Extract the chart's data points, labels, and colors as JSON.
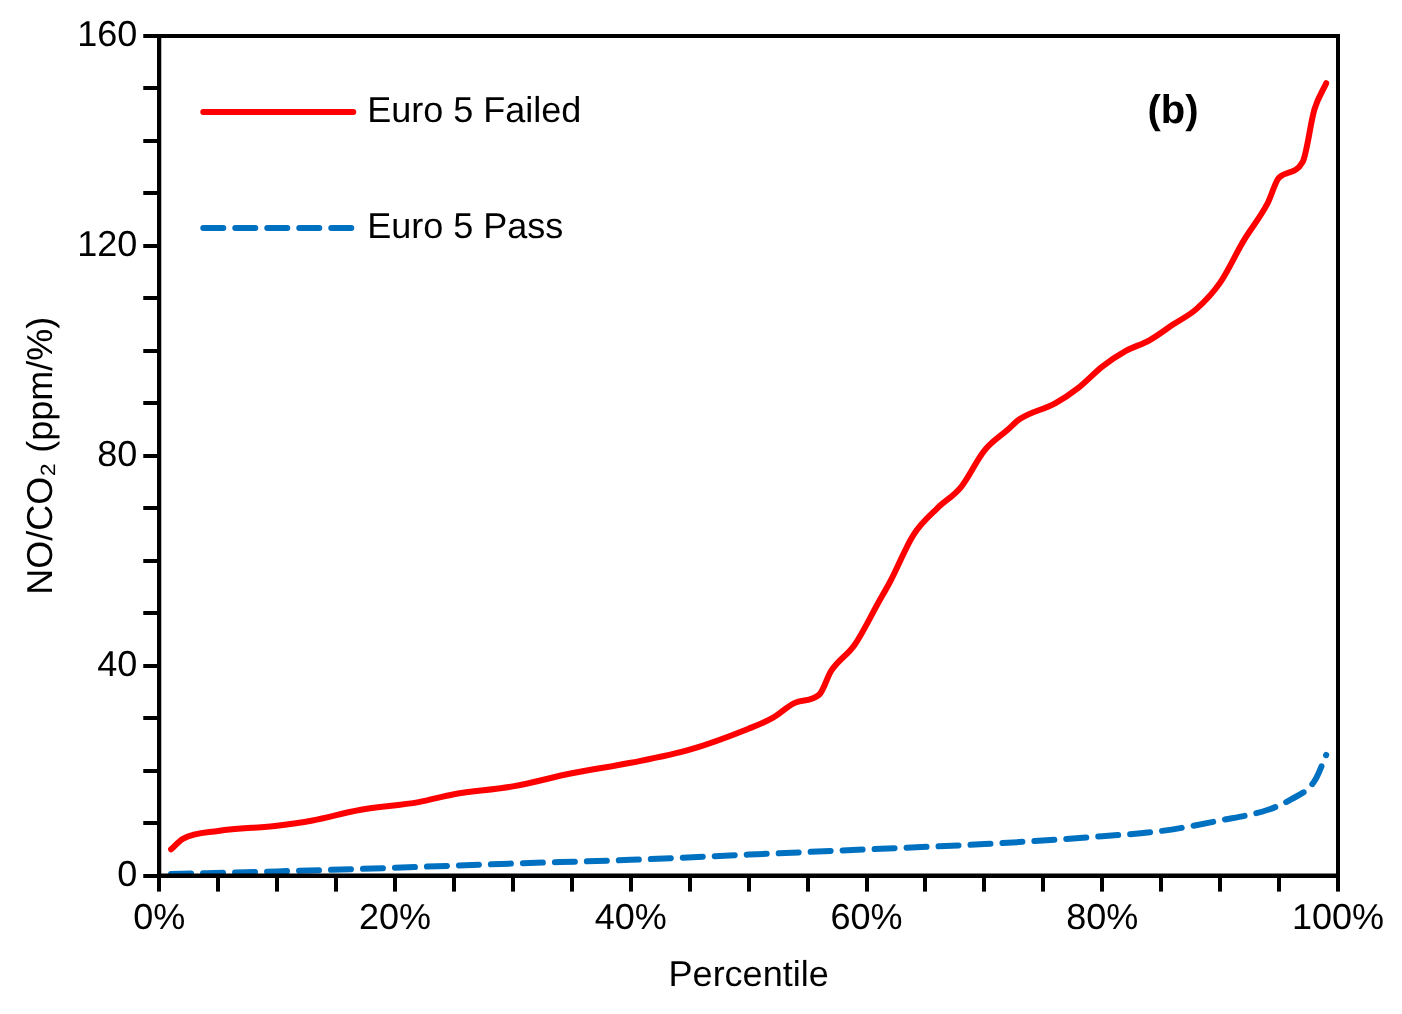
{
  "chart_data": {
    "type": "line",
    "xlabel": "Percentile",
    "ylabel": "NO/CO₂ (ppm/%)",
    "annotations": [
      "(b)"
    ],
    "xlim": [
      0,
      100
    ],
    "ylim": [
      0,
      160
    ],
    "xticks": [
      {
        "value": 0,
        "label": "0%"
      },
      {
        "value": 5,
        "label": null
      },
      {
        "value": 10,
        "label": null
      },
      {
        "value": 15,
        "label": null
      },
      {
        "value": 20,
        "label": "20%"
      },
      {
        "value": 25,
        "label": null
      },
      {
        "value": 30,
        "label": null
      },
      {
        "value": 35,
        "label": null
      },
      {
        "value": 40,
        "label": "40%"
      },
      {
        "value": 45,
        "label": null
      },
      {
        "value": 50,
        "label": null
      },
      {
        "value": 55,
        "label": null
      },
      {
        "value": 60,
        "label": "60%"
      },
      {
        "value": 65,
        "label": null
      },
      {
        "value": 70,
        "label": null
      },
      {
        "value": 75,
        "label": null
      },
      {
        "value": 80,
        "label": "80%"
      },
      {
        "value": 85,
        "label": null
      },
      {
        "value": 90,
        "label": null
      },
      {
        "value": 95,
        "label": null
      },
      {
        "value": 100,
        "label": "100%"
      }
    ],
    "yticks": [
      0,
      {
        "value": 10,
        "label": null
      },
      {
        "value": 20,
        "label": null
      },
      {
        "value": 30,
        "label": null
      },
      40,
      {
        "value": 50,
        "label": null
      },
      {
        "value": 60,
        "label": null
      },
      {
        "value": 70,
        "label": null
      },
      80,
      {
        "value": 90,
        "label": null
      },
      {
        "value": 100,
        "label": null
      },
      {
        "value": 110,
        "label": null
      },
      120,
      {
        "value": 130,
        "label": null
      },
      {
        "value": 140,
        "label": null
      },
      {
        "value": 150,
        "label": null
      },
      160
    ],
    "grid": false,
    "legend": "top left",
    "marker": "none",
    "series": [
      {
        "name": "Euro 5 Failed",
        "color": "#ff0000",
        "line_style": "solid",
        "x": [
          1,
          2,
          5,
          10,
          13,
          17,
          22,
          25,
          30,
          35,
          40,
          45,
          50,
          52,
          54,
          56,
          57,
          59,
          61,
          62,
          64,
          66,
          68,
          70,
          72,
          73,
          76,
          78,
          80,
          82,
          84,
          86,
          88,
          90,
          92,
          94,
          95,
          97,
          98,
          99
        ],
        "values": [
          5,
          7,
          8.5,
          9.5,
          10.5,
          12.5,
          14,
          15.5,
          17,
          19.5,
          21.5,
          24,
          28,
          30,
          33,
          34.5,
          39,
          44,
          52,
          56,
          65,
          70,
          74,
          81,
          85,
          87,
          90,
          93,
          97,
          100,
          102,
          105,
          108,
          113,
          121,
          128,
          133,
          136,
          146,
          151
        ]
      },
      {
        "name": "Euro 5 Pass",
        "color": "#0070c0",
        "line_style": "dashed",
        "x": [
          1,
          10,
          20,
          30,
          40,
          50,
          60,
          70,
          80,
          85,
          90,
          94,
          96,
          98,
          99
        ],
        "values": [
          0.3,
          0.8,
          1.5,
          2.3,
          3,
          4,
          5,
          6,
          7.5,
          8.5,
          10.5,
          12.5,
          14.5,
          18,
          23
        ]
      }
    ]
  }
}
